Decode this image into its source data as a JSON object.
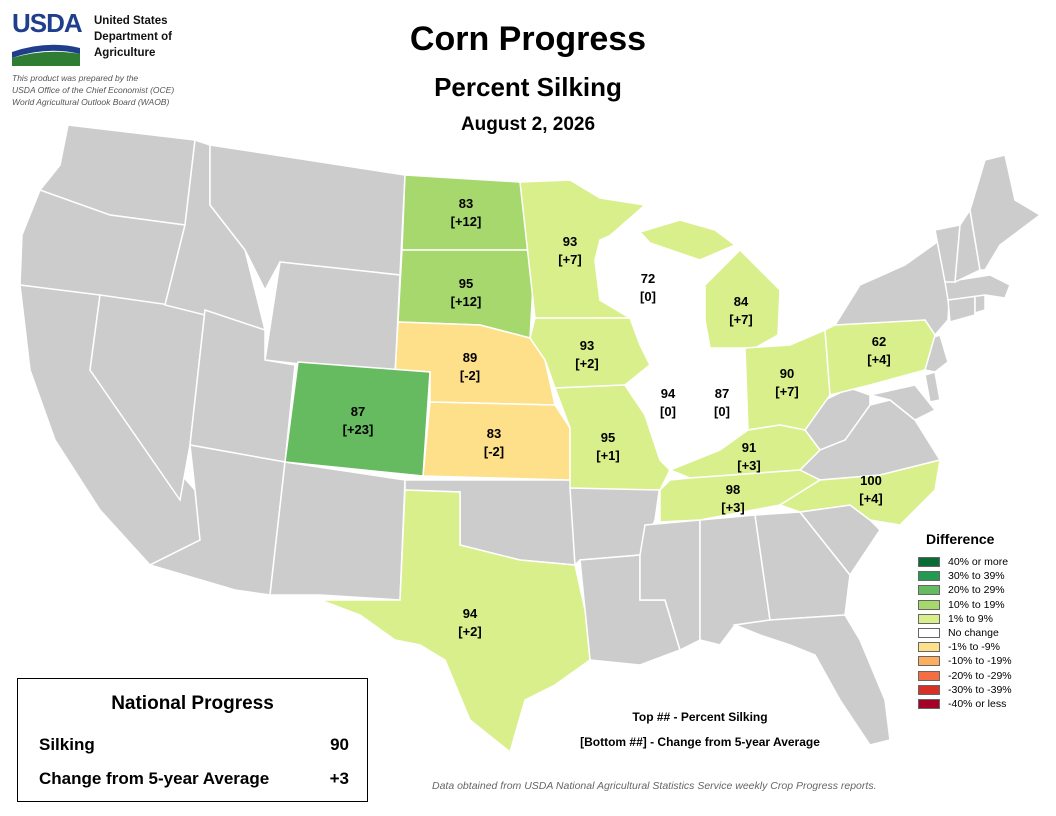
{
  "header": {
    "logo_text": "USDA",
    "agency_lines": [
      "United States",
      "Department of",
      "Agriculture"
    ],
    "credit_lines": [
      "This product was prepared by the",
      "USDA Office of the Chief Economist (OCE)",
      "World Agricultural Outlook Board (WAOB)"
    ],
    "title": "Corn Progress",
    "subtitle": "Percent Silking",
    "date": "August 2, 2026"
  },
  "colors": {
    "no_data": "#cccccc",
    "positive_10_19": "#a6d86e",
    "positive_20_29": "#66bb60",
    "positive_1_9": "#d9ef8b",
    "no_change": "#ffffff",
    "negative_1_9": "#fee08b",
    "brand_blue": "#1f3e8c",
    "brand_green": "#2e7d32"
  },
  "states": [
    {
      "name": "ND",
      "top": "83",
      "bottom": "[+12]",
      "color": "#a6d86e"
    },
    {
      "name": "SD",
      "top": "95",
      "bottom": "[+12]",
      "color": "#a6d86e"
    },
    {
      "name": "NE",
      "top": "89",
      "bottom": "[-2]",
      "color": "#fee08b"
    },
    {
      "name": "KS",
      "top": "83",
      "bottom": "[-2]",
      "color": "#fee08b"
    },
    {
      "name": "CO",
      "top": "87",
      "bottom": "[+23]",
      "color": "#66bb60"
    },
    {
      "name": "TX",
      "top": "94",
      "bottom": "[+2]",
      "color": "#d9ef8b"
    },
    {
      "name": "MN",
      "top": "93",
      "bottom": "[+7]",
      "color": "#d9ef8b"
    },
    {
      "name": "IA",
      "top": "93",
      "bottom": "[+2]",
      "color": "#d9ef8b"
    },
    {
      "name": "MO",
      "top": "95",
      "bottom": "[+1]",
      "color": "#d9ef8b"
    },
    {
      "name": "WI",
      "top": "72",
      "bottom": "[0]",
      "color": "#ffffff"
    },
    {
      "name": "IL",
      "top": "94",
      "bottom": "[0]",
      "color": "#ffffff"
    },
    {
      "name": "IN",
      "top": "87",
      "bottom": "[0]",
      "color": "#ffffff"
    },
    {
      "name": "MI",
      "top": "84",
      "bottom": "[+7]",
      "color": "#d9ef8b"
    },
    {
      "name": "OH",
      "top": "90",
      "bottom": "[+7]",
      "color": "#d9ef8b"
    },
    {
      "name": "KY",
      "top": "91",
      "bottom": "[+3]",
      "color": "#d9ef8b"
    },
    {
      "name": "TN",
      "top": "98",
      "bottom": "[+3]",
      "color": "#d9ef8b"
    },
    {
      "name": "NC",
      "top": "100",
      "bottom": "[+4]",
      "color": "#d9ef8b"
    },
    {
      "name": "PA",
      "top": "62",
      "bottom": "[+4]",
      "color": "#d9ef8b"
    }
  ],
  "legend": {
    "title": "Difference",
    "items": [
      {
        "label": "40% or more",
        "color": "#0b6b36"
      },
      {
        "label": "30% to 39%",
        "color": "#239a52"
      },
      {
        "label": "20% to 29%",
        "color": "#66bb60"
      },
      {
        "label": "10% to 19%",
        "color": "#a6d86e"
      },
      {
        "label": "1% to 9%",
        "color": "#d9ef8b"
      },
      {
        "label": "No change",
        "color": "#ffffff"
      },
      {
        "label": "-1% to -9%",
        "color": "#fee08b"
      },
      {
        "label": "-10% to -19%",
        "color": "#fdae61"
      },
      {
        "label": "-20% to -29%",
        "color": "#f46d43"
      },
      {
        "label": "-30% to -39%",
        "color": "#d73027"
      },
      {
        "label": "-40% or less",
        "color": "#a50026"
      }
    ]
  },
  "national": {
    "title": "National Progress",
    "silking_label": "Silking",
    "silking_value": "90",
    "change_label": "Change from 5-year Average",
    "change_value": "+3"
  },
  "key": {
    "top": "Top ## - Percent Silking",
    "bottom": "[Bottom ##] - Change from 5-year Average"
  },
  "source": "Data obtained from USDA National Agricultural Statistics Service weekly Crop Progress reports."
}
